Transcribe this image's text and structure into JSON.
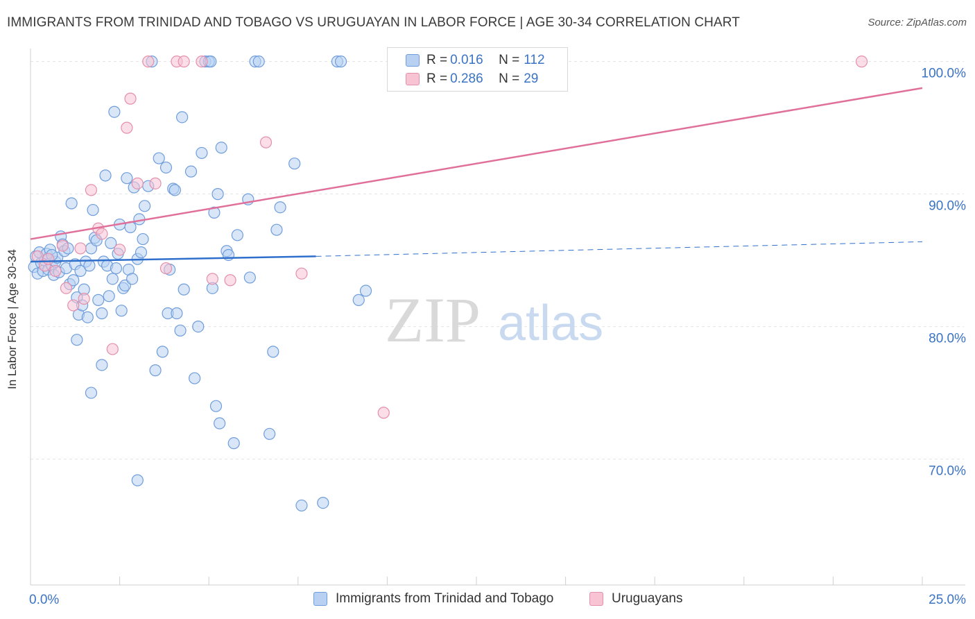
{
  "title": "IMMIGRANTS FROM TRINIDAD AND TOBAGO VS URUGUAYAN IN LABOR FORCE | AGE 30-34 CORRELATION CHART",
  "source": "Source: ZipAtlas.com",
  "watermark": {
    "part1": "ZIP",
    "part2": "atlas"
  },
  "legend": {
    "rows": [
      {
        "r_label": "R = ",
        "r_value": "0.016",
        "n_label": "N = ",
        "n_value": "112"
      },
      {
        "r_label": "R = ",
        "r_value": "0.286",
        "n_label": "N = ",
        "n_value": "29"
      }
    ]
  },
  "colors": {
    "blue_fill": "#b8d1f3",
    "blue_stroke": "#6f9ddb",
    "blue_line": "#2f6fcc",
    "pink_fill": "#f8c3d3",
    "pink_stroke": "#e48fab",
    "pink_line": "#e0709a",
    "tick_text": "#3a73c6",
    "grid": "#e2e2e2"
  },
  "chart_data": {
    "type": "scatter",
    "xlabel": "",
    "ylabel": "In Labor Force | Age 30-34",
    "xlim": [
      0,
      25
    ],
    "ylim": [
      60.5,
      101.5
    ],
    "x_tick_labels": [
      {
        "value": 0,
        "label": "0.0%"
      },
      {
        "value": 25,
        "label": "25.0%"
      }
    ],
    "y_tick_labels": [
      {
        "value": 100,
        "label": "100.0%"
      },
      {
        "value": 90,
        "label": "90.0%"
      },
      {
        "value": 80,
        "label": "80.0%"
      },
      {
        "value": 70,
        "label": "70.0%"
      }
    ],
    "grid": true,
    "legend_position": "top-center",
    "series": [
      {
        "name": "Immigrants from Trinidad and Tobago",
        "color": "#6f9ddb",
        "points": [
          [
            0.1,
            84.5
          ],
          [
            0.15,
            85.3
          ],
          [
            0.2,
            84.0
          ],
          [
            0.25,
            85.6
          ],
          [
            0.3,
            84.8
          ],
          [
            0.35,
            84.2
          ],
          [
            0.4,
            85.0
          ],
          [
            0.45,
            85.5
          ],
          [
            0.5,
            84.3
          ],
          [
            0.55,
            85.8
          ],
          [
            0.6,
            84.6
          ],
          [
            0.65,
            83.9
          ],
          [
            0.7,
            84.9
          ],
          [
            0.75,
            85.2
          ],
          [
            0.8,
            84.1
          ],
          [
            0.85,
            86.8
          ],
          [
            0.9,
            86.2
          ],
          [
            0.95,
            85.7
          ],
          [
            1.0,
            84.4
          ],
          [
            1.05,
            85.9
          ],
          [
            1.1,
            83.2
          ],
          [
            1.15,
            89.3
          ],
          [
            1.2,
            83.5
          ],
          [
            1.25,
            84.7
          ],
          [
            1.3,
            82.2
          ],
          [
            1.35,
            80.9
          ],
          [
            1.4,
            84.2
          ],
          [
            1.45,
            81.6
          ],
          [
            1.5,
            82.8
          ],
          [
            1.55,
            84.9
          ],
          [
            1.6,
            80.7
          ],
          [
            1.65,
            84.6
          ],
          [
            1.7,
            85.9
          ],
          [
            1.75,
            88.8
          ],
          [
            1.8,
            86.7
          ],
          [
            1.85,
            86.5
          ],
          [
            1.9,
            82.0
          ],
          [
            2.0,
            81.0
          ],
          [
            2.05,
            84.9
          ],
          [
            2.1,
            91.4
          ],
          [
            2.15,
            84.6
          ],
          [
            2.2,
            82.3
          ],
          [
            2.25,
            86.3
          ],
          [
            2.3,
            83.6
          ],
          [
            2.35,
            96.2
          ],
          [
            2.4,
            84.4
          ],
          [
            2.45,
            85.5
          ],
          [
            2.5,
            87.7
          ],
          [
            2.55,
            81.2
          ],
          [
            2.6,
            82.9
          ],
          [
            2.65,
            83.1
          ],
          [
            2.7,
            91.2
          ],
          [
            2.75,
            84.3
          ],
          [
            2.8,
            87.5
          ],
          [
            2.85,
            83.6
          ],
          [
            2.9,
            90.5
          ],
          [
            3.0,
            85.1
          ],
          [
            3.05,
            88.1
          ],
          [
            3.1,
            85.6
          ],
          [
            3.15,
            86.6
          ],
          [
            3.2,
            89.1
          ],
          [
            3.3,
            90.6
          ],
          [
            3.4,
            100.0
          ],
          [
            3.5,
            76.7
          ],
          [
            3.6,
            92.7
          ],
          [
            3.7,
            78.1
          ],
          [
            3.8,
            92.0
          ],
          [
            3.85,
            81.0
          ],
          [
            3.9,
            84.3
          ],
          [
            4.0,
            90.4
          ],
          [
            4.05,
            90.3
          ],
          [
            4.1,
            81.0
          ],
          [
            4.2,
            79.7
          ],
          [
            4.25,
            95.8
          ],
          [
            4.3,
            82.8
          ],
          [
            4.5,
            91.7
          ],
          [
            4.6,
            76.1
          ],
          [
            4.7,
            80.0
          ],
          [
            4.8,
            93.1
          ],
          [
            4.9,
            100.0
          ],
          [
            5.0,
            100.0
          ],
          [
            5.05,
            100.0
          ],
          [
            5.1,
            82.9
          ],
          [
            5.15,
            88.6
          ],
          [
            5.2,
            74.0
          ],
          [
            5.25,
            90.0
          ],
          [
            5.3,
            72.7
          ],
          [
            5.35,
            93.5
          ],
          [
            5.5,
            85.7
          ],
          [
            5.55,
            85.4
          ],
          [
            5.8,
            86.9
          ],
          [
            6.1,
            89.6
          ],
          [
            6.15,
            83.7
          ],
          [
            6.3,
            100.0
          ],
          [
            6.4,
            100.0
          ],
          [
            6.8,
            78.1
          ],
          [
            6.9,
            87.3
          ],
          [
            7.0,
            89.0
          ],
          [
            7.4,
            92.3
          ],
          [
            7.6,
            66.5
          ],
          [
            8.2,
            66.7
          ],
          [
            8.6,
            100.0
          ],
          [
            8.7,
            100.0
          ],
          [
            9.2,
            82.0
          ],
          [
            9.4,
            82.7
          ],
          [
            1.3,
            79.0
          ],
          [
            1.7,
            75.0
          ],
          [
            2.0,
            77.1
          ],
          [
            3.0,
            68.4
          ],
          [
            5.7,
            71.2
          ],
          [
            6.7,
            71.9
          ],
          [
            0.6,
            85.4
          ]
        ],
        "trend": {
          "x": [
            0,
            8.0
          ],
          "y": [
            84.9,
            85.3
          ]
        },
        "trend_dashed": {
          "x": [
            8.0,
            25
          ],
          "y": [
            85.3,
            86.4
          ]
        }
      },
      {
        "name": "Uruguayans",
        "color": "#e48fab",
        "points": [
          [
            0.2,
            85.3
          ],
          [
            0.4,
            84.6
          ],
          [
            0.5,
            85.1
          ],
          [
            0.7,
            84.2
          ],
          [
            0.9,
            86.1
          ],
          [
            1.0,
            82.9
          ],
          [
            1.2,
            81.6
          ],
          [
            1.4,
            85.9
          ],
          [
            1.5,
            82.1
          ],
          [
            1.7,
            90.3
          ],
          [
            1.9,
            87.4
          ],
          [
            2.0,
            87.0
          ],
          [
            2.3,
            78.3
          ],
          [
            2.5,
            85.8
          ],
          [
            2.7,
            95.0
          ],
          [
            2.8,
            97.2
          ],
          [
            3.0,
            90.8
          ],
          [
            3.3,
            100.0
          ],
          [
            3.5,
            90.8
          ],
          [
            3.8,
            84.4
          ],
          [
            4.1,
            100.0
          ],
          [
            4.3,
            100.0
          ],
          [
            4.8,
            100.0
          ],
          [
            5.1,
            83.6
          ],
          [
            5.6,
            83.5
          ],
          [
            6.6,
            93.9
          ],
          [
            7.6,
            84.0
          ],
          [
            9.9,
            73.5
          ],
          [
            23.3,
            100.0
          ]
        ],
        "trend": {
          "x": [
            0,
            25
          ],
          "y": [
            86.6,
            98.0
          ]
        }
      }
    ]
  }
}
